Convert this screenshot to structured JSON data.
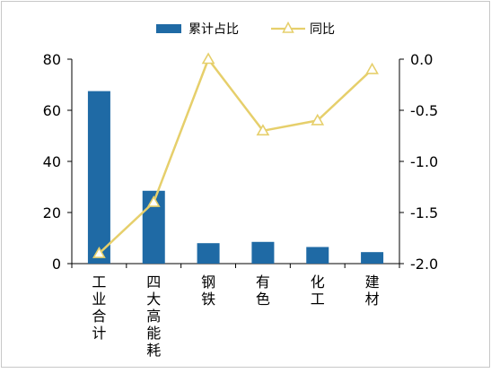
{
  "chart_data": {
    "type": "bar",
    "categories": [
      "工业合计",
      "四大高能耗",
      "钢铁",
      "有色",
      "化工",
      "建材"
    ],
    "series": [
      {
        "name": "累计占比",
        "type": "bar",
        "axis": "left",
        "color": "#1f6aa5",
        "values": [
          67.5,
          28.5,
          8.0,
          8.5,
          6.5,
          4.5
        ]
      },
      {
        "name": "同比",
        "type": "line",
        "axis": "right",
        "color": "#e6cf6b",
        "marker": "open-triangle",
        "values": [
          -1.9,
          -1.4,
          0.0,
          -0.7,
          -0.6,
          -0.1
        ]
      }
    ],
    "left_axis": {
      "ylim": [
        0,
        80
      ],
      "ticks": [
        0,
        20,
        40,
        60,
        80
      ],
      "tick_labels": [
        "0",
        "20",
        "40",
        "60",
        "80"
      ]
    },
    "right_axis": {
      "ylim": [
        -2.0,
        0.0
      ],
      "ticks": [
        0.0,
        -0.5,
        -1.0,
        -1.5,
        -2.0
      ],
      "tick_labels": [
        "0.0",
        "-0.5",
        "-1.0",
        "-1.5",
        "-2.0"
      ]
    },
    "legend": {
      "placement": "top-center",
      "entries": [
        "累计占比",
        "同比"
      ]
    },
    "grid": false,
    "title": "",
    "xlabel": "",
    "ylabel": ""
  }
}
